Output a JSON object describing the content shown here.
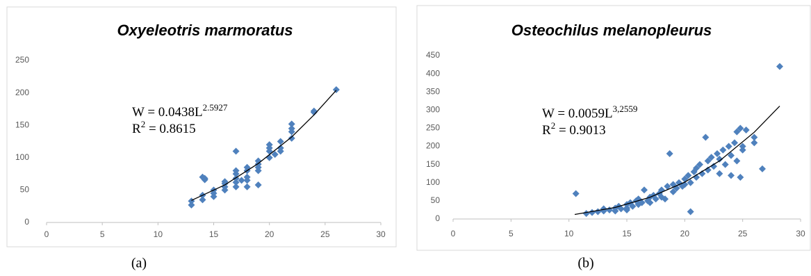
{
  "chart_data": [
    {
      "type": "scatter",
      "title": "Oxyeleotris marmoratus",
      "color": "#4f81bd",
      "trend_color": "#000000",
      "grid": false,
      "xlim": [
        0,
        30
      ],
      "xticks": [
        0,
        5,
        10,
        15,
        20,
        25,
        30
      ],
      "ylim": [
        0,
        250
      ],
      "yticks": [
        0,
        50,
        100,
        150,
        200,
        250
      ],
      "x": [
        13,
        13,
        14,
        14,
        14,
        14.2,
        14.2,
        15,
        15,
        15,
        16,
        16,
        16,
        16,
        17,
        17,
        17,
        17,
        17,
        17,
        17.5,
        18,
        18,
        18,
        18,
        18,
        19,
        19,
        19,
        19,
        19,
        20,
        20,
        20,
        20,
        20.5,
        21,
        21,
        21,
        22,
        22,
        22,
        22,
        24,
        24,
        26
      ],
      "values": [
        27,
        33,
        35,
        42,
        70,
        66,
        68,
        40,
        45,
        50,
        50,
        55,
        60,
        63,
        55,
        62,
        68,
        75,
        80,
        110,
        65,
        55,
        65,
        70,
        80,
        85,
        58,
        80,
        85,
        90,
        95,
        100,
        110,
        115,
        120,
        105,
        110,
        115,
        125,
        130,
        140,
        145,
        152,
        170,
        172,
        205
      ],
      "trend": {
        "x": [
          13,
          16,
          19,
          22,
          24,
          26
        ],
        "y": [
          34,
          58,
          91,
          132,
          166,
          204
        ]
      },
      "equation": {
        "text": "W = 0.0438L",
        "sup": "2.5927"
      },
      "r2": {
        "text": "R",
        "sup": "2",
        "rest": " = 0.8615"
      },
      "caption": "(a)"
    },
    {
      "type": "scatter",
      "title": "Osteochilus melanopleurus",
      "color": "#4f81bd",
      "trend_color": "#000000",
      "grid": false,
      "xlim": [
        0,
        30
      ],
      "xticks": [
        0,
        5,
        10,
        15,
        20,
        25,
        30
      ],
      "ylim": [
        0,
        450
      ],
      "yticks": [
        0,
        50,
        100,
        150,
        200,
        250,
        300,
        350,
        400,
        450
      ],
      "x": [
        10.6,
        11.5,
        12,
        12.5,
        13,
        13,
        13.5,
        14,
        14,
        14.3,
        14.5,
        15,
        15,
        15,
        15.3,
        15.5,
        15.8,
        16,
        16,
        16.3,
        16.5,
        16.8,
        17,
        17,
        17.3,
        17.5,
        17.8,
        18,
        18,
        18.3,
        18.5,
        18.7,
        19,
        19,
        19.3,
        19.5,
        19.8,
        20,
        20,
        20.3,
        20.5,
        20.5,
        20.8,
        21,
        21,
        21.3,
        21.5,
        21.8,
        22,
        22,
        22.3,
        22.5,
        22.8,
        23,
        23,
        23.3,
        23.5,
        23.8,
        24,
        24,
        24.3,
        24.5,
        24.5,
        24.8,
        24.8,
        25,
        25.3,
        25,
        26,
        26,
        26.7,
        28.2
      ],
      "values": [
        70,
        15,
        18,
        20,
        22,
        28,
        25,
        30,
        22,
        35,
        28,
        40,
        30,
        25,
        45,
        35,
        50,
        40,
        55,
        45,
        80,
        50,
        60,
        45,
        65,
        55,
        70,
        60,
        80,
        55,
        90,
        180,
        75,
        95,
        85,
        100,
        90,
        110,
        95,
        120,
        20,
        100,
        130,
        115,
        140,
        150,
        125,
        225,
        160,
        135,
        170,
        145,
        180,
        165,
        125,
        190,
        150,
        200,
        175,
        120,
        210,
        240,
        160,
        250,
        115,
        200,
        245,
        190,
        210,
        225,
        138,
        420
      ],
      "trend": {
        "x": [
          10.5,
          14,
          17,
          20,
          23,
          26,
          28.2
        ],
        "y": [
          12.5,
          31.8,
          59.8,
          101.5,
          160,
          239,
          311
        ]
      },
      "equation": {
        "text": "W = 0.0059L",
        "sup": "3,2559"
      },
      "r2": {
        "text": "R",
        "sup": "2",
        "rest": " = 0.9013"
      },
      "caption": "(b)"
    }
  ]
}
